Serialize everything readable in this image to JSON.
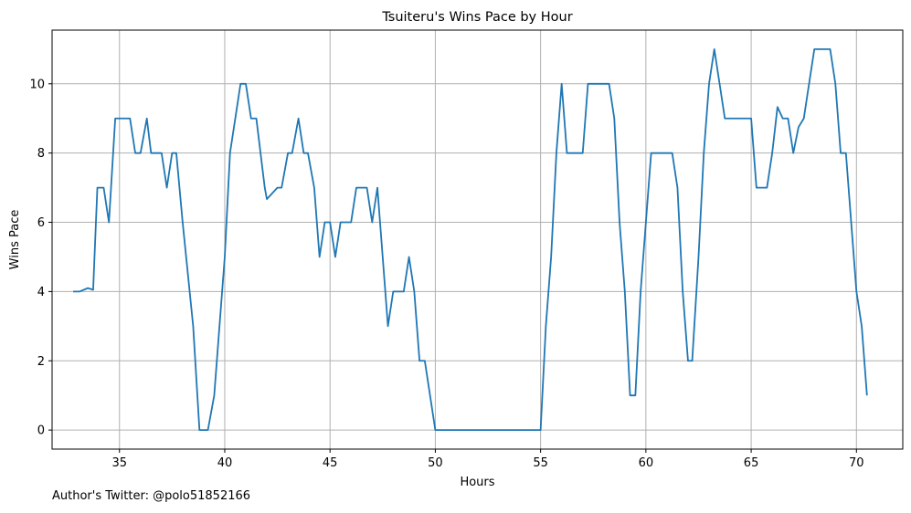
{
  "chart_data": {
    "type": "line",
    "title": "Tsuiteru's Wins Pace by Hour",
    "xlabel": "Hours",
    "ylabel": "Wins Pace",
    "xlim": [
      31.8,
      72.2
    ],
    "ylim": [
      -0.55,
      11.55
    ],
    "xticks": [
      35,
      40,
      45,
      50,
      55,
      60,
      65,
      70
    ],
    "yticks": [
      0,
      2,
      4,
      6,
      8,
      10
    ],
    "grid": true,
    "color": "#1f77b4",
    "series": [
      {
        "x": [
          32.8,
          33.1,
          33.5,
          33.75,
          33.95,
          34.25,
          34.5,
          34.8,
          35.5,
          35.75,
          36.0,
          36.3,
          36.5,
          37.0,
          37.25,
          37.5,
          37.7,
          38.0,
          38.5,
          38.8,
          39.2,
          39.5,
          40.0,
          40.25,
          40.75,
          41.0,
          41.25,
          41.5,
          41.9,
          42.0,
          42.5,
          42.7,
          43.0,
          43.2,
          43.5,
          43.75,
          43.95,
          44.25,
          44.5,
          44.75,
          45.0,
          45.25,
          45.5,
          46.0,
          46.25,
          46.75,
          47.0,
          47.25,
          47.5,
          47.75,
          48.0,
          48.5,
          48.75,
          49.0,
          49.25,
          49.5,
          50.0,
          55.0,
          55.25,
          55.5,
          55.75,
          56.0,
          56.25,
          56.5,
          56.75,
          57.0,
          57.25,
          57.5,
          58.0,
          58.25,
          58.5,
          58.75,
          59.0,
          59.25,
          59.5,
          59.75,
          60.0,
          60.25,
          60.5,
          60.75,
          61.0,
          61.25,
          61.5,
          61.75,
          62.0,
          62.2,
          62.5,
          62.75,
          63.0,
          63.25,
          63.5,
          63.75,
          64.0,
          64.25,
          64.5,
          64.75,
          65.0,
          65.25,
          65.5,
          65.75,
          66.0,
          66.25,
          66.5,
          66.75,
          67.0,
          67.25,
          67.5,
          67.75,
          68.0,
          68.25,
          68.5,
          68.75,
          69.0,
          69.25,
          69.5,
          69.75,
          70.0,
          70.25,
          70.5
        ],
        "y": [
          4,
          4,
          4.1,
          4.05,
          7,
          7,
          6,
          9,
          9,
          8,
          8,
          9,
          8,
          8,
          7,
          8,
          8,
          6,
          3,
          0,
          0,
          1,
          5,
          8,
          10,
          10,
          9,
          9,
          7,
          6.67,
          7,
          7,
          8,
          8,
          9,
          8,
          8,
          7,
          5,
          6,
          6,
          5,
          6,
          6,
          7,
          7,
          6,
          7,
          5,
          3,
          4,
          4,
          5,
          4,
          2,
          2,
          0,
          0,
          3,
          5,
          8,
          10,
          8,
          8,
          8,
          8,
          10,
          10,
          10,
          10,
          9,
          6,
          4,
          1,
          1,
          4,
          6,
          8,
          8,
          8,
          8,
          8,
          7,
          4,
          2,
          2,
          5,
          8,
          10,
          11,
          10,
          9,
          9,
          9,
          9,
          9,
          9,
          7,
          7,
          7,
          8,
          9.33,
          9,
          9,
          8,
          8.75,
          9,
          10,
          11,
          11,
          11,
          11,
          10,
          8,
          8,
          6,
          4,
          3,
          1
        ]
      }
    ]
  },
  "footer": {
    "author": "Author's Twitter: @polo51852166"
  }
}
